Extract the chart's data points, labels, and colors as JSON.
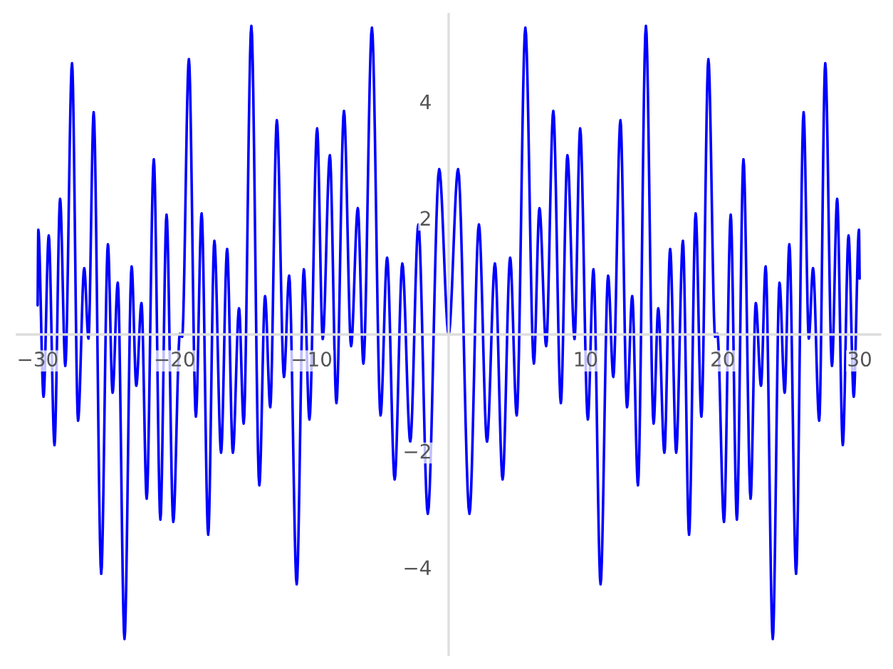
{
  "chart_data": {
    "type": "line",
    "x": [
      -30,
      -29.95,
      -29.57,
      -29.19,
      -28.77,
      -28.36,
      -27.98,
      -27.49,
      -27.05,
      -26.6,
      -26.29,
      -25.91,
      -25.36,
      -24.87,
      -24.53,
      -24.15,
      -23.66,
      -23.14,
      -22.8,
      -22.42,
      -22.04,
      -21.52,
      -21.04,
      -20.59,
      -20.1,
      -19.62,
      -19.45,
      -18.96,
      -18.45,
      -18.03,
      -17.55,
      -17.1,
      -16.61,
      -16.17,
      -15.75,
      -15.3,
      -14.96,
      -14.4,
      -13.82,
      -13.4,
      -13.02,
      -12.54,
      -12.02,
      -11.64,
      -11.09,
      -10.57,
      -10.16,
      -9.6,
      -9.19,
      -8.67,
      -8.19,
      -7.64,
      -7.12,
      -6.63,
      -6.22,
      -5.6,
      -4.97,
      -4.49,
      -3.94,
      -3.38,
      -2.8,
      -2.21,
      -1.52,
      -0.69,
      0,
      0.69,
      1.52,
      2.21,
      2.8,
      3.38,
      3.94,
      4.49,
      4.97,
      5.6,
      6.22,
      6.63,
      7.12,
      7.64,
      8.19,
      8.67,
      9.19,
      9.6,
      10.16,
      10.57,
      11.09,
      11.64,
      12.02,
      12.54,
      13.02,
      13.4,
      13.82,
      14.4,
      14.96,
      15.3,
      15.75,
      16.17,
      16.61,
      17.1,
      17.55,
      18.03,
      18.45,
      18.96,
      19.45,
      19.62,
      20.1,
      20.59,
      21.04,
      21.52,
      22.04,
      22.42,
      22.8,
      23.14,
      23.66,
      24.15,
      24.53,
      24.87,
      25.36,
      25.91,
      26.29,
      26.6,
      27.05,
      27.49,
      27.98,
      28.36,
      28.77,
      29.19,
      29.57,
      29.95,
      30
    ],
    "series": [
      {
        "color": "#0000ff",
        "values": [
          0.5,
          1.8,
          -1.07,
          1.7,
          -1.9,
          2.33,
          -0.54,
          4.66,
          -1.48,
          1.14,
          -0.07,
          3.82,
          -4.11,
          1.55,
          -1.0,
          0.89,
          -5.23,
          1.17,
          -0.88,
          0.54,
          -2.82,
          3.01,
          -3.18,
          2.06,
          -3.22,
          0.01,
          -0.04,
          4.73,
          -1.41,
          2.08,
          -3.44,
          1.61,
          -2.03,
          1.47,
          -2.03,
          0.45,
          -1.53,
          5.3,
          -2.59,
          0.66,
          -1.25,
          3.68,
          -0.73,
          1.01,
          -4.29,
          1.12,
          -1.46,
          3.54,
          -0.08,
          3.08,
          -1.18,
          3.84,
          -0.2,
          2.17,
          -0.5,
          5.27,
          -1.39,
          1.32,
          -2.49,
          1.22,
          -1.84,
          1.89,
          -3.08,
          2.84,
          0,
          2.84,
          -3.08,
          1.89,
          -1.84,
          1.22,
          -2.49,
          1.32,
          -1.39,
          5.27,
          -0.5,
          2.17,
          -0.2,
          3.84,
          -1.18,
          3.08,
          -0.08,
          3.54,
          -1.46,
          1.12,
          -4.29,
          1.01,
          -0.73,
          3.68,
          -1.25,
          0.66,
          -2.59,
          5.3,
          -1.53,
          0.45,
          -2.03,
          1.47,
          -2.03,
          1.61,
          -3.44,
          2.08,
          -1.41,
          4.73,
          -0.04,
          0.01,
          -3.22,
          2.06,
          -3.18,
          3.01,
          -2.82,
          0.54,
          -0.88,
          1.17,
          -5.23,
          0.89,
          -1.0,
          1.55,
          -4.11,
          3.82,
          -0.07,
          1.14,
          -1.48,
          4.66,
          -0.54,
          2.33,
          -1.9,
          1.7,
          -1.07,
          1.8,
          0.96
        ]
      }
    ],
    "xlim": [
      -31.5,
      31.5
    ],
    "ylim": [
      -5.5,
      5.5
    ],
    "xticks": [
      {
        "value": -30,
        "label": "−30"
      },
      {
        "value": -20,
        "label": "−20"
      },
      {
        "value": -10,
        "label": "−10"
      },
      10,
      20,
      30
    ],
    "yticks": [
      {
        "value": -4,
        "label": "−4"
      },
      {
        "value": -2,
        "label": "−2"
      },
      2,
      4
    ],
    "grid": false,
    "legend": false,
    "marker": "none",
    "line_style": "solid"
  }
}
